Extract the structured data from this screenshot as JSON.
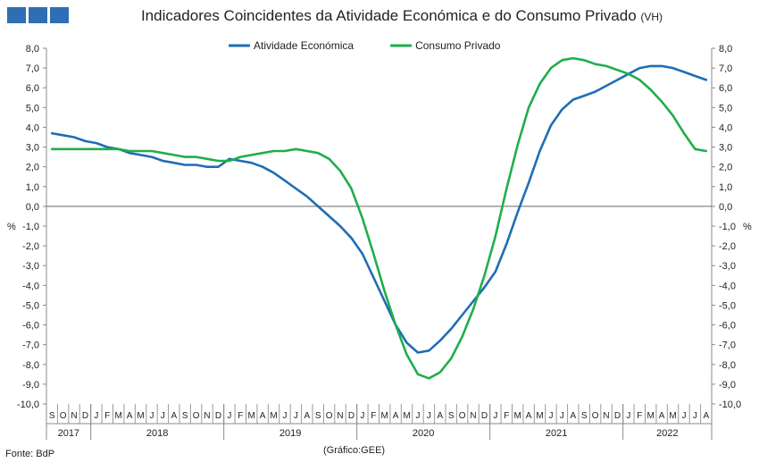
{
  "brand": {
    "color": "#2E6FB3"
  },
  "header": {
    "title": "Indicadores Coincidentes da Atividade Económica e do Consumo Privado",
    "title_note": "(VH)"
  },
  "footer": {
    "source": "Fonte: BdP",
    "credit": "(Gráfico:GEE)"
  },
  "chart_data": {
    "type": "line",
    "title": "Indicadores Coincidentes da Atividade Económica e do Consumo Privado (VH)",
    "ylabel_left": "%",
    "ylabel_right": "%",
    "ylim": [
      -10,
      8
    ],
    "yticks": [
      "8,0",
      "7,0",
      "6,0",
      "5,0",
      "4,0",
      "3,0",
      "2,0",
      "1,0",
      "0,0",
      "-1,0",
      "-2,0",
      "-3,0",
      "-4,0",
      "-5,0",
      "-6,0",
      "-7,0",
      "-8,0",
      "-9,0",
      "-10,0"
    ],
    "legend_position": "top-center",
    "grid": false,
    "months": [
      "S",
      "O",
      "N",
      "D",
      "J",
      "F",
      "M",
      "A",
      "M",
      "J",
      "J",
      "A",
      "S",
      "O",
      "N",
      "D",
      "J",
      "F",
      "M",
      "A",
      "M",
      "J",
      "J",
      "A",
      "S",
      "O",
      "N",
      "D",
      "J",
      "F",
      "M",
      "A",
      "M",
      "J",
      "J",
      "A",
      "S",
      "O",
      "N",
      "D",
      "J",
      "F",
      "M",
      "A",
      "M",
      "J",
      "J",
      "A",
      "S",
      "O",
      "N",
      "D",
      "J",
      "F",
      "M",
      "A",
      "M",
      "J",
      "J",
      "A"
    ],
    "years": [
      {
        "label": "2017",
        "start": 0,
        "end": 3
      },
      {
        "label": "2018",
        "start": 4,
        "end": 15
      },
      {
        "label": "2019",
        "start": 16,
        "end": 27
      },
      {
        "label": "2020",
        "start": 28,
        "end": 39
      },
      {
        "label": "2021",
        "start": 40,
        "end": 51
      },
      {
        "label": "2022",
        "start": 52,
        "end": 59
      }
    ],
    "series": [
      {
        "name": "Atividade Económica",
        "color": "#1F6DB5",
        "values": [
          3.7,
          3.6,
          3.5,
          3.3,
          3.2,
          3.0,
          2.9,
          2.7,
          2.6,
          2.5,
          2.3,
          2.2,
          2.1,
          2.1,
          2.0,
          2.0,
          2.4,
          2.3,
          2.2,
          2.0,
          1.7,
          1.3,
          0.9,
          0.5,
          0.0,
          -0.5,
          -1.0,
          -1.6,
          -2.4,
          -3.6,
          -4.8,
          -6.0,
          -6.9,
          -7.4,
          -7.3,
          -6.8,
          -6.2,
          -5.5,
          -4.8,
          -4.1,
          -3.3,
          -1.9,
          -0.3,
          1.2,
          2.8,
          4.1,
          4.9,
          5.4,
          5.6,
          5.8,
          6.1,
          6.4,
          6.7,
          7.0,
          7.1,
          7.1,
          7.0,
          6.8,
          6.6,
          6.4
        ]
      },
      {
        "name": "Consumo Privado",
        "color": "#1FAE4B",
        "values": [
          2.9,
          2.9,
          2.9,
          2.9,
          2.9,
          2.9,
          2.9,
          2.8,
          2.8,
          2.8,
          2.7,
          2.6,
          2.5,
          2.5,
          2.4,
          2.3,
          2.3,
          2.5,
          2.6,
          2.7,
          2.8,
          2.8,
          2.9,
          2.8,
          2.7,
          2.4,
          1.8,
          0.9,
          -0.6,
          -2.4,
          -4.3,
          -6.0,
          -7.5,
          -8.5,
          -8.7,
          -8.4,
          -7.7,
          -6.6,
          -5.2,
          -3.5,
          -1.5,
          0.9,
          3.1,
          5.0,
          6.2,
          7.0,
          7.4,
          7.5,
          7.4,
          7.2,
          7.1,
          6.9,
          6.7,
          6.4,
          5.9,
          5.3,
          4.6,
          3.7,
          2.9,
          2.8
        ]
      }
    ]
  }
}
